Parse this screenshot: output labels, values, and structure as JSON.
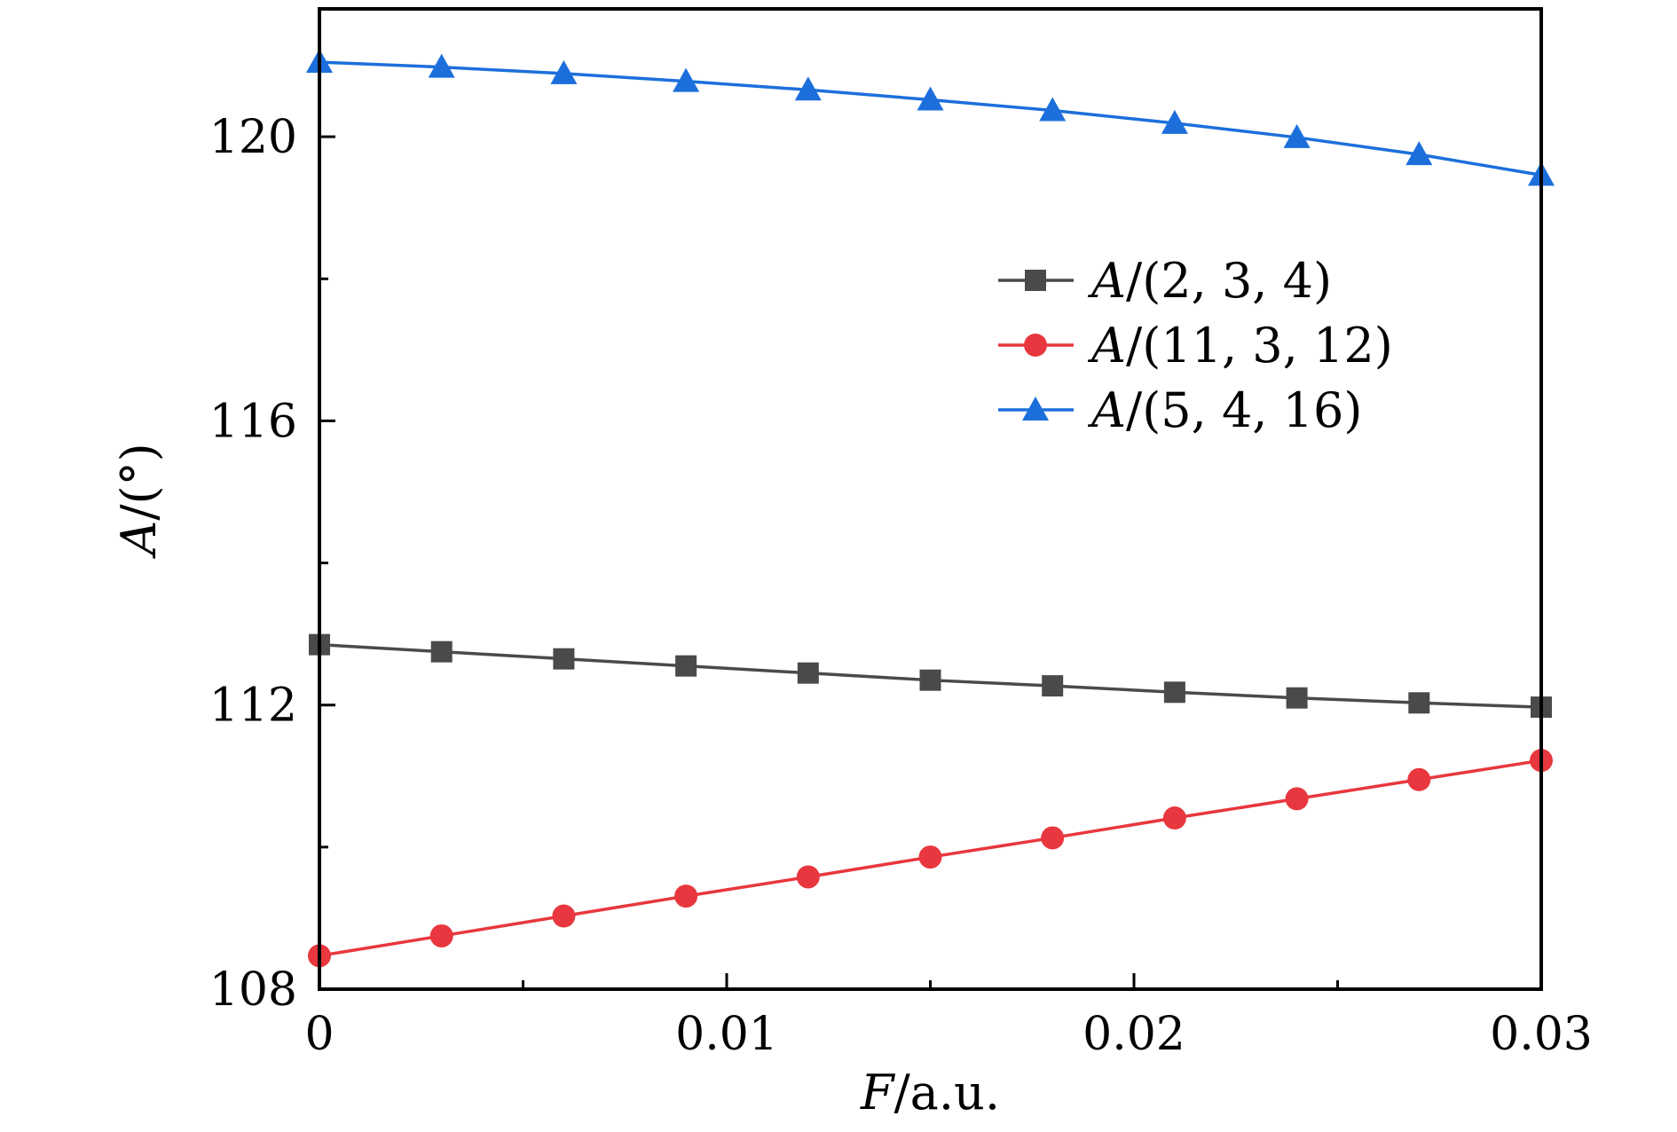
{
  "chart_data": {
    "type": "line",
    "title": "",
    "xlabel": {
      "italic": "F",
      "rest": "/a.u."
    },
    "ylabel": {
      "italic": "A",
      "rest": "/(°)"
    },
    "xlim": [
      0,
      0.03
    ],
    "ylim": [
      108,
      121.8
    ],
    "xticks": [
      {
        "value": 0,
        "label": "0"
      },
      {
        "value": 0.01,
        "label": "0.01"
      },
      {
        "value": 0.02,
        "label": "0.02"
      },
      {
        "value": 0.03,
        "label": "0.03"
      }
    ],
    "x_minor_ticks": [
      0.005,
      0.015,
      0.025
    ],
    "yticks": [
      {
        "value": 108,
        "label": "108"
      },
      {
        "value": 112,
        "label": "112"
      },
      {
        "value": 116,
        "label": "116"
      },
      {
        "value": 120,
        "label": "120"
      }
    ],
    "y_minor_ticks": [
      110,
      114,
      118
    ],
    "grid": false,
    "legend_position": "right-upper",
    "x": [
      0,
      0.003,
      0.006,
      0.009,
      0.012,
      0.015,
      0.018,
      0.021,
      0.024,
      0.027,
      0.03
    ],
    "series": [
      {
        "name": "A/(2, 3, 4)",
        "name_italic": "A",
        "name_rest": "/(2, 3, 4)",
        "marker": "square",
        "color": "#4a4a4a",
        "values": [
          112.85,
          112.75,
          112.65,
          112.55,
          112.45,
          112.35,
          112.27,
          112.18,
          112.1,
          112.03,
          111.97
        ]
      },
      {
        "name": "A/(11, 3, 12)",
        "name_italic": "A",
        "name_rest": "/(11, 3, 12)",
        "marker": "circle",
        "color": "#e8373e",
        "values": [
          108.47,
          108.75,
          109.03,
          109.31,
          109.58,
          109.86,
          110.13,
          110.41,
          110.68,
          110.95,
          111.22
        ]
      },
      {
        "name": "A/(5, 4, 16)",
        "name_italic": "A",
        "name_rest": "/(5, 4, 16)",
        "marker": "triangle",
        "color": "#1c6fdb",
        "values": [
          121.05,
          120.98,
          120.89,
          120.78,
          120.66,
          120.52,
          120.37,
          120.19,
          119.99,
          119.75,
          119.46
        ]
      }
    ]
  }
}
